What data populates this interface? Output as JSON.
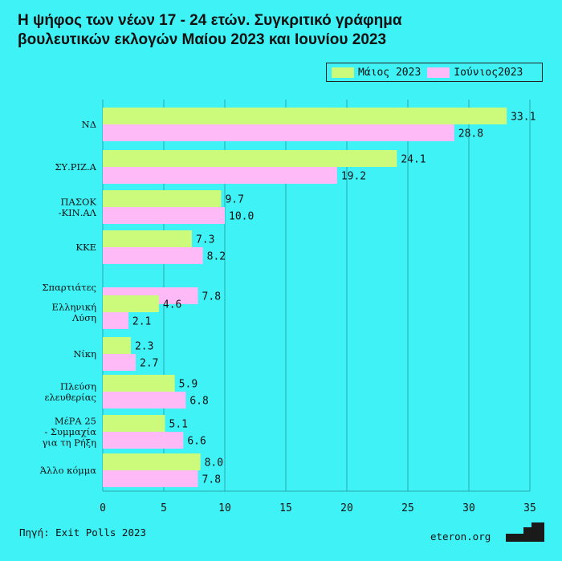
{
  "title_lines": [
    "Η ψήφος των νέων 17 - 24 ετών. Συγκριτικό γράφημα",
    "βουλευτικών εκλογών Μαίου 2023 και Ιουνίου 2023"
  ],
  "source": "Πηγή: Exit Polls 2023",
  "brand": "eteron.org",
  "colors": {
    "background": "#3ef2f6",
    "may": "#ccfb7c",
    "june": "#fdbaf6"
  },
  "chart_data": {
    "type": "bar",
    "orientation": "horizontal",
    "title": "Η ψήφος των νέων 17 - 24 ετών. Συγκριτικό γράφημα βουλευτικών εκλογών Μαίου 2023 και Ιουνίου 2023",
    "categories": [
      [
        "ΝΔ"
      ],
      [
        "ΣΥ.ΡΙΖ.Α"
      ],
      [
        "ΠΑΣΟΚ",
        "-ΚΙΝ.ΑΛ"
      ],
      [
        "ΚΚΕ"
      ],
      [
        "Σπαρτιάτες"
      ],
      [
        "Ελληνική",
        "Λύση"
      ],
      [
        "Νίκη"
      ],
      [
        "Πλεύση",
        "ελευθερίας"
      ],
      [
        "ΜέΡΑ 25",
        "-  Συμμαχία",
        "για τη Ρήξη"
      ],
      [
        "Άλλο κόμμα"
      ]
    ],
    "series": [
      {
        "name": "Μάιος 2023",
        "values": [
          33.1,
          24.1,
          9.7,
          7.3,
          null,
          4.6,
          2.3,
          5.9,
          5.1,
          8.0
        ],
        "labels": [
          "33.1",
          "24.1",
          "9.7",
          "7.3",
          "",
          "4.6",
          "2.3",
          "5.9",
          "5.1",
          "8.0"
        ]
      },
      {
        "name": "Ιούνιος2023",
        "values": [
          28.8,
          19.2,
          10.0,
          8.2,
          7.8,
          2.1,
          2.7,
          6.8,
          6.6,
          7.8
        ],
        "labels": [
          "28.8",
          "19.2",
          "10.0",
          "8.2",
          "7.8",
          "2.1",
          "2.7",
          "6.8",
          "6.6",
          "7.8"
        ]
      }
    ],
    "xlim": [
      0,
      35
    ],
    "xticks": [
      0,
      5,
      10,
      15,
      20,
      25,
      30,
      35
    ],
    "grid": "vertical",
    "legend_position": "top-right"
  }
}
